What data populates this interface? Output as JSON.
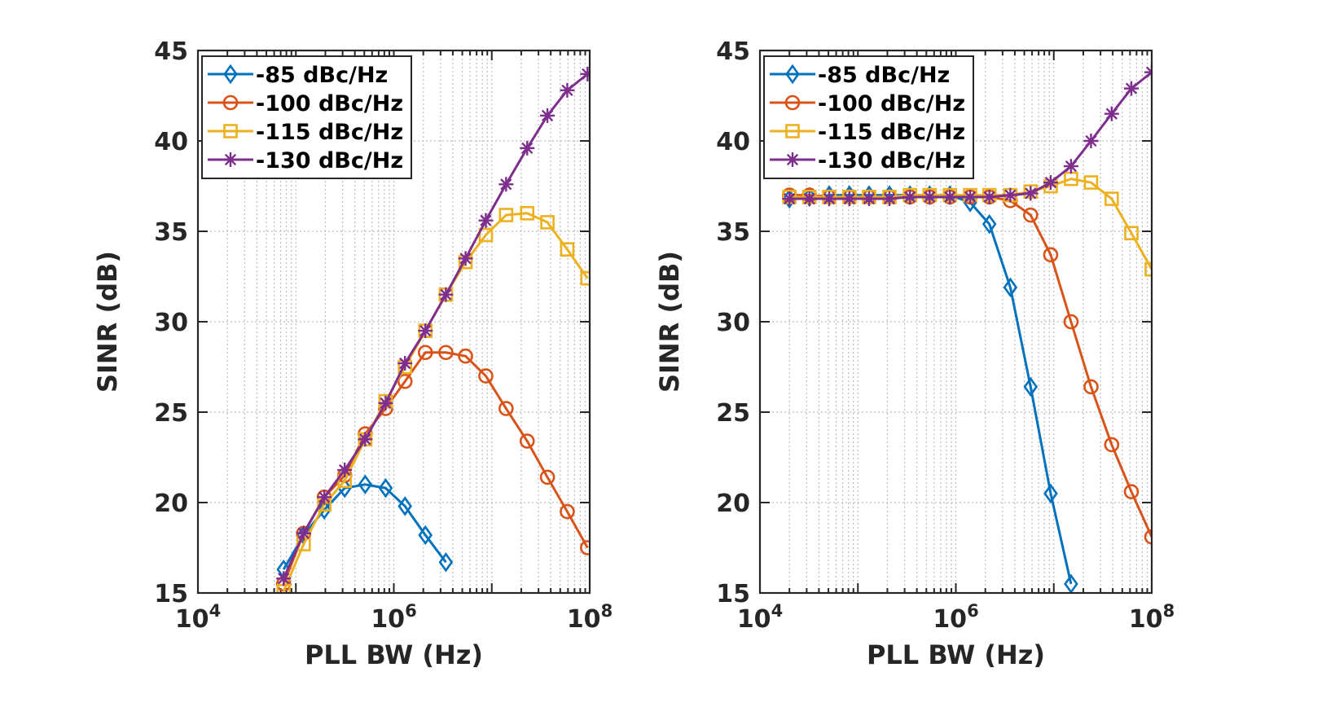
{
  "chart_data": [
    {
      "type": "line",
      "xlabel": "PLL BW (Hz)",
      "ylabel": "SINR (dB)",
      "xscale": "log",
      "xlim": [
        10000,
        100000000
      ],
      "ylim": [
        15,
        45
      ],
      "xticks": [
        {
          "base": "10",
          "exp": "4"
        },
        {
          "base": "10",
          "exp": "6"
        },
        {
          "base": "10",
          "exp": "8"
        }
      ],
      "yticks": [
        "15",
        "20",
        "25",
        "30",
        "35",
        "40",
        "45"
      ],
      "grid": true,
      "legend_location": "top-left",
      "series": [
        {
          "name": "-85 dBc/Hz",
          "color": "#0072BD",
          "marker": "diamond",
          "x": [
            75000,
            120000,
            195000,
            315000,
            510000,
            825000,
            1300000,
            2100000,
            3400000
          ],
          "y": [
            16.3,
            18.2,
            19.6,
            20.8,
            21.0,
            20.8,
            19.8,
            18.2,
            16.7
          ]
        },
        {
          "name": "-100 dBc/Hz",
          "color": "#D95319",
          "marker": "circle",
          "x": [
            75000,
            120000,
            195000,
            315000,
            510000,
            825000,
            1300000,
            2100000,
            3400000,
            5400000,
            8700000,
            14000000,
            23000000,
            37000000,
            59000000,
            95000000
          ],
          "y": [
            15.5,
            18.3,
            20.3,
            21.5,
            23.8,
            25.2,
            26.7,
            28.3,
            28.3,
            28.1,
            27.0,
            25.2,
            23.4,
            21.4,
            19.5,
            17.5
          ]
        },
        {
          "name": "-115 dBc/Hz",
          "color": "#EDB120",
          "marker": "square",
          "x": [
            75000,
            120000,
            195000,
            315000,
            510000,
            825000,
            1300000,
            2100000,
            3400000,
            5400000,
            8700000,
            14000000,
            23000000,
            37000000,
            59000000,
            95000000
          ],
          "y": [
            15.1,
            17.7,
            19.9,
            21.2,
            23.5,
            25.6,
            27.5,
            29.5,
            31.5,
            33.3,
            34.8,
            35.9,
            36.0,
            35.5,
            34.0,
            32.4
          ]
        },
        {
          "name": "-130 dBc/Hz",
          "color": "#7E2F8E",
          "marker": "asterisk",
          "x": [
            75000,
            120000,
            195000,
            315000,
            510000,
            825000,
            1300000,
            2100000,
            3400000,
            5400000,
            8700000,
            14000000,
            23000000,
            37000000,
            59000000,
            95000000
          ],
          "y": [
            15.8,
            18.3,
            20.3,
            21.8,
            23.5,
            25.5,
            27.7,
            29.5,
            31.5,
            33.5,
            35.6,
            37.6,
            39.6,
            41.4,
            42.8,
            43.7
          ]
        }
      ]
    },
    {
      "type": "line",
      "xlabel": "PLL BW (Hz)",
      "ylabel": "SINR (dB)",
      "xscale": "log",
      "xlim": [
        10000,
        100000000
      ],
      "ylim": [
        15,
        45
      ],
      "xticks": [
        {
          "base": "10",
          "exp": "4"
        },
        {
          "base": "10",
          "exp": "6"
        },
        {
          "base": "10",
          "exp": "8"
        }
      ],
      "yticks": [
        "15",
        "20",
        "25",
        "30",
        "35",
        "40",
        "45"
      ],
      "grid": true,
      "legend_location": "top-left",
      "series": [
        {
          "name": "-85 dBc/Hz",
          "color": "#0072BD",
          "marker": "diamond",
          "x": [
            20000,
            32000,
            51000,
            82000,
            130000,
            210000,
            340000,
            540000,
            870000,
            1400000,
            2200000,
            3600000,
            5800000,
            9300000,
            15000000
          ],
          "y": [
            36.8,
            36.9,
            37.0,
            37.0,
            37.0,
            37.0,
            37.0,
            37.0,
            37.0,
            36.6,
            35.4,
            31.9,
            26.4,
            20.5,
            15.5
          ]
        },
        {
          "name": "-100 dBc/Hz",
          "color": "#D95319",
          "marker": "circle",
          "x": [
            20000,
            32000,
            51000,
            82000,
            130000,
            210000,
            340000,
            540000,
            870000,
            1400000,
            2200000,
            3600000,
            5800000,
            9300000,
            15000000,
            24000000,
            39000000,
            62000000,
            100000000
          ],
          "y": [
            37.0,
            37.0,
            36.9,
            36.9,
            36.9,
            36.9,
            36.9,
            36.9,
            36.9,
            36.9,
            36.9,
            36.7,
            35.9,
            33.7,
            30.0,
            26.4,
            23.2,
            20.6,
            18.1
          ]
        },
        {
          "name": "-115 dBc/Hz",
          "color": "#EDB120",
          "marker": "square",
          "x": [
            20000,
            32000,
            51000,
            82000,
            130000,
            210000,
            340000,
            540000,
            870000,
            1400000,
            2200000,
            3600000,
            5800000,
            9300000,
            15000000,
            24000000,
            39000000,
            62000000,
            100000000
          ],
          "y": [
            36.9,
            36.9,
            36.9,
            36.9,
            36.9,
            36.9,
            37.0,
            37.0,
            37.0,
            37.0,
            37.0,
            37.0,
            37.2,
            37.5,
            37.9,
            37.7,
            36.8,
            34.9,
            32.9
          ]
        },
        {
          "name": "-130 dBc/Hz",
          "color": "#7E2F8E",
          "marker": "asterisk",
          "x": [
            20000,
            32000,
            51000,
            82000,
            130000,
            210000,
            340000,
            540000,
            870000,
            1400000,
            2200000,
            3600000,
            5800000,
            9300000,
            15000000,
            24000000,
            39000000,
            62000000,
            100000000
          ],
          "y": [
            36.8,
            36.8,
            36.8,
            36.8,
            36.8,
            36.8,
            36.9,
            36.9,
            36.9,
            36.9,
            36.9,
            37.0,
            37.1,
            37.7,
            38.6,
            40.0,
            41.5,
            42.9,
            43.8
          ]
        }
      ]
    }
  ]
}
